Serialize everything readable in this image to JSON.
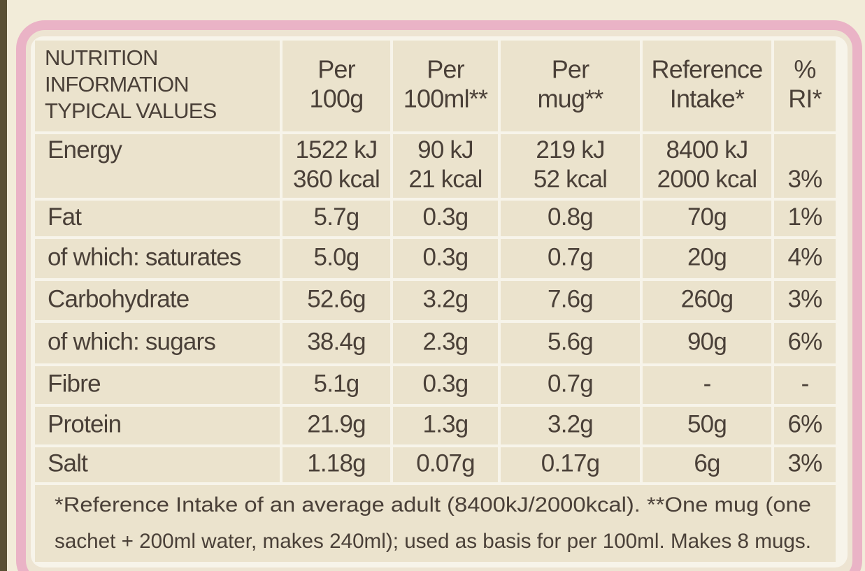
{
  "table": {
    "header": [
      [
        "NUTRITION",
        "INFORMATION",
        "TYPICAL VALUES"
      ],
      [
        "Per",
        "100g"
      ],
      [
        "Per",
        "100ml**"
      ],
      [
        "Per",
        "mug**"
      ],
      [
        "Reference",
        "Intake*"
      ],
      [
        "%",
        "RI*"
      ]
    ],
    "rows": [
      [
        [
          "Energy"
        ],
        [
          "1522 kJ",
          "360 kcal"
        ],
        [
          "90 kJ",
          "21 kcal"
        ],
        [
          "219 kJ",
          "52 kcal"
        ],
        [
          "8400 kJ",
          "2000 kcal"
        ],
        [
          "3%"
        ]
      ],
      [
        [
          "Fat"
        ],
        [
          "5.7g"
        ],
        [
          "0.3g"
        ],
        [
          "0.8g"
        ],
        [
          "70g"
        ],
        [
          "1%"
        ]
      ],
      [
        [
          "of which: saturates"
        ],
        [
          "5.0g"
        ],
        [
          "0.3g"
        ],
        [
          "0.7g"
        ],
        [
          "20g"
        ],
        [
          "4%"
        ]
      ],
      [
        [
          "Carbohydrate"
        ],
        [
          "52.6g"
        ],
        [
          "3.2g"
        ],
        [
          "7.6g"
        ],
        [
          "260g"
        ],
        [
          "3%"
        ]
      ],
      [
        [
          "of which: sugars"
        ],
        [
          "38.4g"
        ],
        [
          "2.3g"
        ],
        [
          "5.6g"
        ],
        [
          "90g"
        ],
        [
          "6%"
        ]
      ],
      [
        [
          "Fibre"
        ],
        [
          "5.1g"
        ],
        [
          "0.3g"
        ],
        [
          "0.7g"
        ],
        [
          "-"
        ],
        [
          "-"
        ]
      ],
      [
        [
          "Protein"
        ],
        [
          "21.9g"
        ],
        [
          "1.3g"
        ],
        [
          "3.2g"
        ],
        [
          "50g"
        ],
        [
          "6%"
        ]
      ],
      [
        [
          "Salt"
        ],
        [
          "1.18g"
        ],
        [
          "0.07g"
        ],
        [
          "0.17g"
        ],
        [
          "6g"
        ],
        [
          "3%"
        ]
      ]
    ],
    "footnote": [
      "*Reference Intake of an average adult (8400kJ/2000kcal). **One mug (one",
      "sachet + 200ml water, makes 240ml); used as basis for per 100ml. Makes 8 mugs."
    ]
  }
}
